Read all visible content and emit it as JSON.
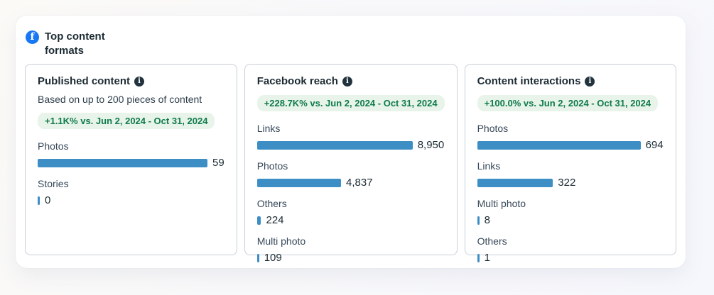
{
  "widget": {
    "title": "Top content formats",
    "icon": "facebook-logo"
  },
  "colors": {
    "facebook_blue": "#1877F2",
    "bar_blue": "#3e8ec6",
    "badge_bg": "#e8f3ea",
    "badge_text": "#0f7b4a",
    "title_dark": "#1c2b33",
    "info_icon": "#22333e"
  },
  "cards": [
    {
      "title": "Published content",
      "info_icon": "info-icon",
      "subtitle": "Based on up to 200 pieces of content",
      "badge": "+1.1K% vs. Jun 2, 2024 - Oct 31, 2024",
      "metrics": [
        {
          "label": "Photos",
          "value": 59,
          "display": "59"
        },
        {
          "label": "Stories",
          "value": 0,
          "display": "0"
        }
      ]
    },
    {
      "title": "Facebook reach",
      "info_icon": "info-icon",
      "badge": "+228.7K% vs. Jun 2, 2024 - Oct 31, 2024",
      "metrics": [
        {
          "label": "Links",
          "value": 8950,
          "display": "8,950"
        },
        {
          "label": "Photos",
          "value": 4837,
          "display": "4,837"
        },
        {
          "label": "Others",
          "value": 224,
          "display": "224"
        },
        {
          "label": "Multi photo",
          "value": 109,
          "display": "109"
        }
      ]
    },
    {
      "title": "Content interactions",
      "info_icon": "info-icon",
      "badge": "+100.0% vs. Jun 2, 2024 - Oct 31, 2024",
      "metrics": [
        {
          "label": "Photos",
          "value": 694,
          "display": "694"
        },
        {
          "label": "Links",
          "value": 322,
          "display": "322"
        },
        {
          "label": "Multi photo",
          "value": 8,
          "display": "8"
        },
        {
          "label": "Others",
          "value": 1,
          "display": "1"
        }
      ]
    }
  ],
  "chart_data": [
    {
      "type": "bar",
      "orientation": "horizontal",
      "title": "Published content",
      "subtitle": "Based on up to 200 pieces of content",
      "comparison": "+1.1K% vs. Jun 2, 2024 - Oct 31, 2024",
      "categories": [
        "Photos",
        "Stories"
      ],
      "values": [
        59,
        0
      ],
      "value_labels": [
        "59",
        "0"
      ],
      "bar_color": "#3e8ec6",
      "grid": false,
      "legend": false
    },
    {
      "type": "bar",
      "orientation": "horizontal",
      "title": "Facebook reach",
      "comparison": "+228.7K% vs. Jun 2, 2024 - Oct 31, 2024",
      "categories": [
        "Links",
        "Photos",
        "Others",
        "Multi photo"
      ],
      "values": [
        8950,
        4837,
        224,
        109
      ],
      "value_labels": [
        "8,950",
        "4,837",
        "224",
        "109"
      ],
      "bar_color": "#3e8ec6",
      "grid": false,
      "legend": false
    },
    {
      "type": "bar",
      "orientation": "horizontal",
      "title": "Content interactions",
      "comparison": "+100.0% vs. Jun 2, 2024 - Oct 31, 2024",
      "categories": [
        "Photos",
        "Links",
        "Multi photo",
        "Others"
      ],
      "values": [
        694,
        322,
        8,
        1
      ],
      "value_labels": [
        "694",
        "322",
        "8",
        "1"
      ],
      "bar_color": "#3e8ec6",
      "grid": false,
      "legend": false
    }
  ]
}
